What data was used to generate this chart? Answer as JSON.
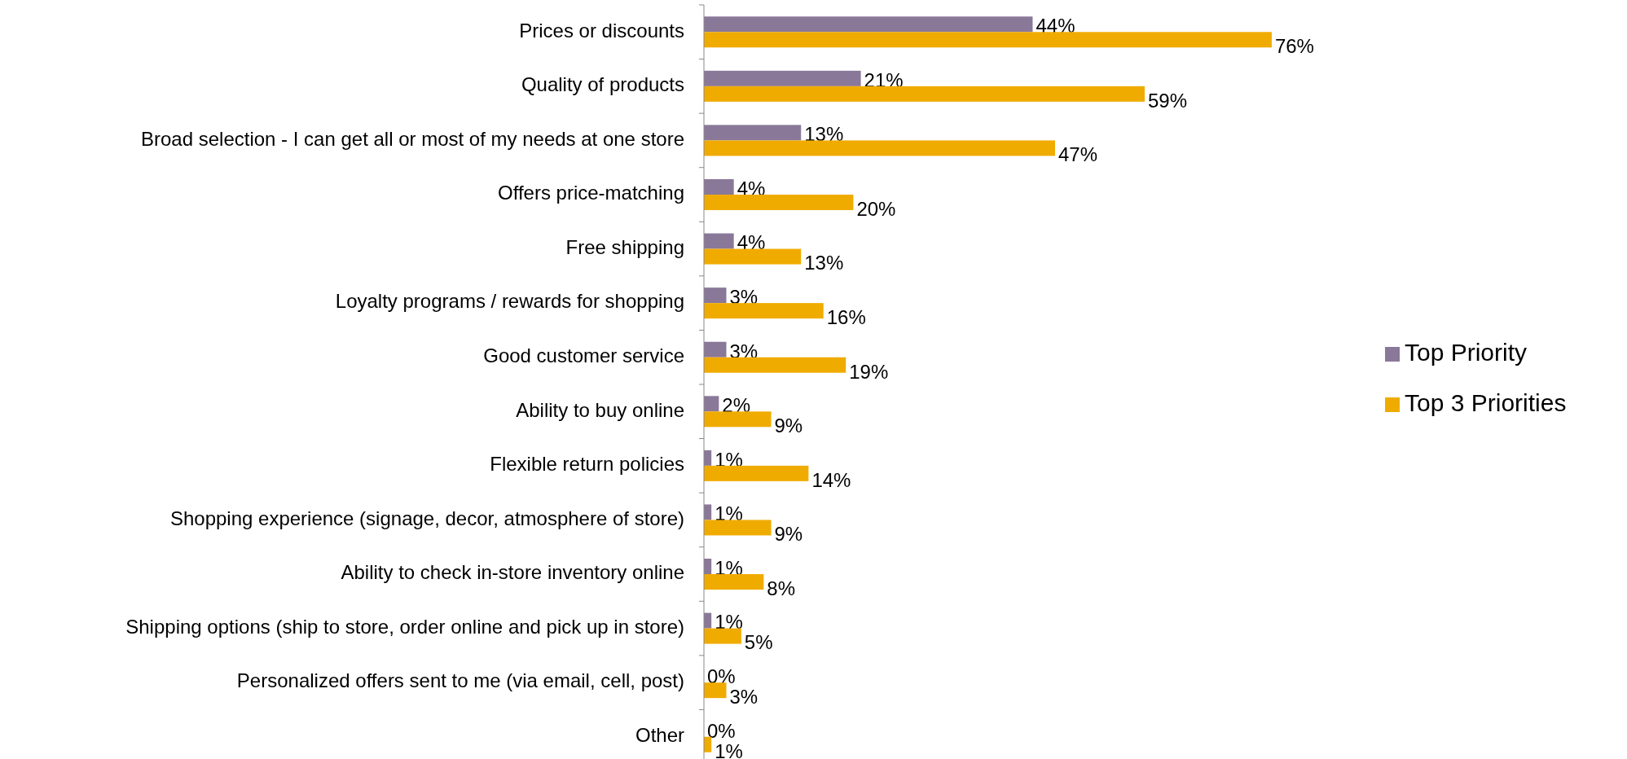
{
  "chart_data": {
    "type": "bar",
    "orientation": "horizontal",
    "categories": [
      "Prices or discounts",
      "Quality of products",
      "Broad selection - I can get all or most of my needs at one store",
      "Offers price-matching",
      "Free shipping",
      "Loyalty programs / rewards for shopping",
      "Good customer service",
      "Ability to buy online",
      "Flexible return policies",
      "Shopping experience (signage, decor, atmosphere of store)",
      "Ability to check in-store inventory online",
      "Shipping options (ship to store, order online and pick up in store)",
      "Personalized offers sent to me (via email, cell, post)",
      "Other"
    ],
    "series": [
      {
        "name": "Top Priority",
        "color": "#8a7899",
        "values": [
          44,
          21,
          13,
          4,
          4,
          3,
          3,
          2,
          1,
          1,
          1,
          1,
          0,
          0
        ],
        "value_labels": [
          "44%",
          "21%",
          "13%",
          "4%",
          "4%",
          "3%",
          "3%",
          "2%",
          "1%",
          "1%",
          "1%",
          "1%",
          "0%",
          "0%"
        ]
      },
      {
        "name": "Top 3 Priorities",
        "color": "#f0ab00",
        "values": [
          76,
          59,
          47,
          20,
          13,
          16,
          19,
          9,
          14,
          9,
          8,
          5,
          3,
          1
        ],
        "value_labels": [
          "76%",
          "59%",
          "47%",
          "20%",
          "13%",
          "16%",
          "19%",
          "9%",
          "14%",
          "9%",
          "8%",
          "5%",
          "3%",
          "1%"
        ]
      }
    ],
    "legend": "right",
    "grid": false
  }
}
